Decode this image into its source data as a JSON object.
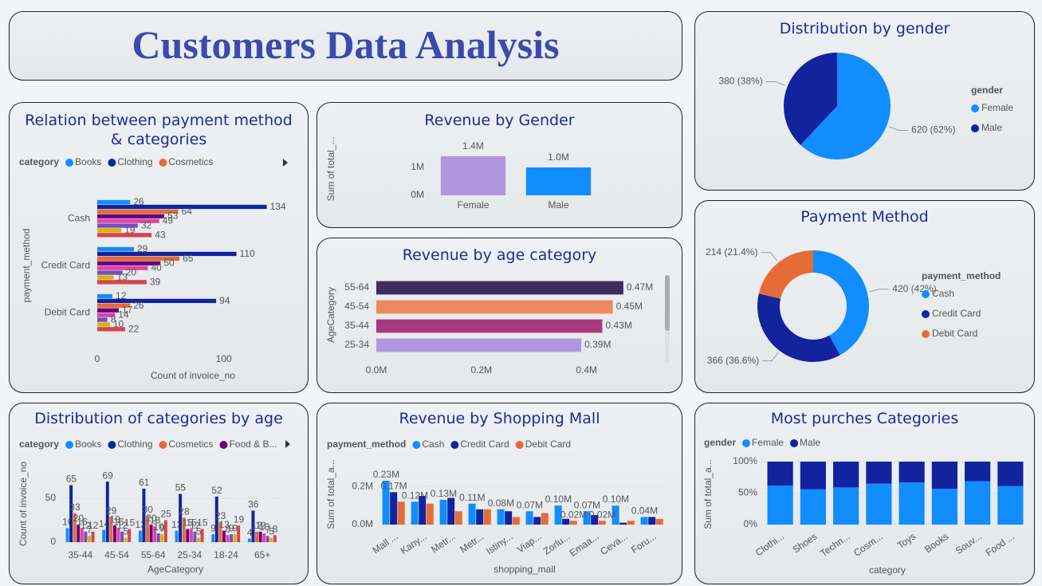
{
  "title": "Customers Data Analysis",
  "chart_data": [
    {
      "type": "hbar",
      "title": "Relation between payment method & categories",
      "legend_title": "category",
      "categories": [
        "Cash",
        "Credit Card",
        "Debit Card"
      ],
      "series": [
        {
          "name": "Books",
          "color": "#118DFF",
          "values": [
            26,
            29,
            12
          ]
        },
        {
          "name": "Clothing",
          "color": "#12239E",
          "values": [
            134,
            110,
            94
          ]
        },
        {
          "name": "Cosmetics",
          "color": "#E66C37",
          "values": [
            64,
            65,
            26
          ]
        },
        {
          "color": "#6B007B",
          "values": [
            53,
            50,
            17
          ]
        },
        {
          "color": "#E044A7",
          "values": [
            49,
            40,
            14
          ]
        },
        {
          "color": "#744EC2",
          "values": [
            32,
            20,
            8
          ]
        },
        {
          "color": "#D9B300",
          "values": [
            19,
            13,
            10
          ]
        },
        {
          "color": "#D64550",
          "values": [
            43,
            39,
            22
          ]
        }
      ],
      "xlim": [
        0,
        150
      ],
      "xticks": [
        0,
        100
      ],
      "x_label": "Count of invoice_no",
      "y_label": "payment_method"
    },
    {
      "type": "bar",
      "title": "Revenue by Gender",
      "categories": [
        "Female",
        "Male"
      ],
      "values": [
        1400000,
        1000000
      ],
      "value_labels": [
        "1.4M",
        "1.0M"
      ],
      "colors": [
        "#B097DD",
        "#118DFF"
      ],
      "ylim": [
        0,
        1700000
      ],
      "yticks": [
        {
          "value": 0,
          "label": "0M"
        },
        {
          "value": 1000000,
          "label": "1M"
        }
      ],
      "y_label": "Sum of total_..."
    },
    {
      "type": "hbar",
      "title": "Revenue by age category",
      "categories": [
        "55-64",
        "45-54",
        "35-44",
        "25-34"
      ],
      "values": [
        470000,
        450000,
        430000,
        390000
      ],
      "value_labels": [
        "0.47M",
        "0.45M",
        "0.43M",
        "0.39M"
      ],
      "colors": [
        "#3D2B61",
        "#EB8A5E",
        "#A7397C",
        "#B097DD"
      ],
      "xlim": [
        0,
        540000
      ],
      "xticks": [
        {
          "value": 0,
          "label": "0.0M"
        },
        {
          "value": 200000,
          "label": "0.2M"
        },
        {
          "value": 400000,
          "label": "0.4M"
        }
      ],
      "y_label": "AgeCategory"
    },
    {
      "type": "pie",
      "title": "Distribution by gender",
      "legend_title": "gender",
      "categories": [
        "Female",
        "Male"
      ],
      "values": [
        620,
        380
      ],
      "value_labels": [
        "620 (62%)",
        "380 (38%)"
      ],
      "colors": [
        "#118DFF",
        "#12239E"
      ]
    },
    {
      "type": "donut",
      "title": "Payment Method",
      "legend_title": "payment_method",
      "categories": [
        "Cash",
        "Credit Card",
        "Debit Card"
      ],
      "values": [
        420,
        366,
        214
      ],
      "value_labels": [
        "420 (42%)",
        "366 (36.6%)",
        "214 (21.4%)"
      ],
      "colors": [
        "#118DFF",
        "#12239E",
        "#E66C37"
      ]
    },
    {
      "type": "bar",
      "title": "Distribution of categories by age",
      "legend_title": "category",
      "categories": [
        "35-44",
        "45-54",
        "55-64",
        "25-34",
        "18-24",
        "65+"
      ],
      "series": [
        {
          "name": "Books",
          "color": "#118DFF",
          "values": [
            16,
            14,
            13,
            13,
            9,
            4
          ]
        },
        {
          "name": "Clothing",
          "color": "#12239E",
          "values": [
            65,
            69,
            61,
            55,
            52,
            36
          ]
        },
        {
          "name": "Cosmetics",
          "color": "#E66C37",
          "values": [
            33,
            29,
            30,
            28,
            23,
            12
          ]
        },
        {
          "name": "Food & B...",
          "color": "#6B007B",
          "values": [
            20,
            19,
            20,
            15,
            13,
            12
          ]
        },
        {
          "color": "#E044A7",
          "values": [
            16,
            16,
            18,
            15,
            8,
            10
          ]
        },
        {
          "color": "#744EC2",
          "values": [
            12,
            12,
            10,
            12,
            9,
            7
          ]
        },
        {
          "color": "#D9B300",
          "values": [
            7,
            5,
            9,
            5,
            9,
            5
          ]
        },
        {
          "color": "#D64550",
          "values": [
            12,
            15,
            25,
            15,
            19,
            8
          ]
        }
      ],
      "ylim": [
        0,
        90
      ],
      "yticks": [
        0,
        50
      ],
      "grid": true,
      "x_label": "AgeCategory",
      "y_label": "Count of invoice_no"
    },
    {
      "type": "bar",
      "title": "Revenue by Shopping Mall",
      "legend_title": "payment_method",
      "categories": [
        "Mall ...",
        "Kany...",
        "Metr...",
        "Metr...",
        "Istiny...",
        "Viap...",
        "Zorlu...",
        "Emaa...",
        "Ceva...",
        "Foru..."
      ],
      "series": [
        {
          "name": "Cash",
          "color": "#118DFF",
          "values": [
            230000,
            120000,
            130000,
            110000,
            80000,
            70000,
            100000,
            70000,
            100000,
            40000
          ],
          "value_labels": [
            "0.23M",
            "0.12M",
            "0.13M",
            "0.11M",
            "0.08M",
            "0.07M",
            "0.10M",
            "0.07M",
            "0.10M",
            "0.04M"
          ]
        },
        {
          "name": "Credit Card",
          "color": "#12239E",
          "values": [
            170000,
            150000,
            140000,
            80000,
            70000,
            40000,
            30000,
            50000,
            10000,
            40000
          ],
          "value_labels": [
            "0.17M",
            null,
            null,
            null,
            null,
            null,
            null,
            null,
            null,
            null
          ]
        },
        {
          "name": "Debit Card",
          "color": "#E66C37",
          "values": [
            120000,
            110000,
            70000,
            80000,
            40000,
            60000,
            20000,
            20000,
            20000,
            30000
          ],
          "value_labels": [
            null,
            null,
            null,
            null,
            null,
            null,
            "0.02M",
            "0.02M",
            null,
            null
          ]
        }
      ],
      "ylim": [
        0,
        280000
      ],
      "yticks": [
        {
          "value": 0,
          "label": "0.0M"
        },
        {
          "value": 200000,
          "label": "0.2M"
        }
      ],
      "grid": true,
      "x_label": "shopping_mall",
      "y_label": "Sum of total_a..."
    },
    {
      "type": "stacked",
      "title": "Most purches Categories",
      "legend_title": "gender",
      "categories": [
        "Clothi...",
        "Shoes",
        "Techn...",
        "Cosm...",
        "Toys",
        "Books",
        "Souv...",
        "Food ..."
      ],
      "series": [
        {
          "name": "Female",
          "color": "#118DFF",
          "values": [
            62,
            56,
            59,
            65,
            67,
            57,
            69,
            61
          ]
        },
        {
          "name": "Male",
          "color": "#12239E",
          "values": [
            38,
            44,
            41,
            35,
            33,
            43,
            31,
            39
          ]
        }
      ],
      "ylim": [
        0,
        100
      ],
      "yticks": [
        {
          "value": 0,
          "label": "0%"
        },
        {
          "value": 50,
          "label": "50%"
        },
        {
          "value": 100,
          "label": "100%"
        }
      ],
      "grid": true,
      "x_label": "category",
      "y_label": "Sum of total_a..."
    }
  ]
}
